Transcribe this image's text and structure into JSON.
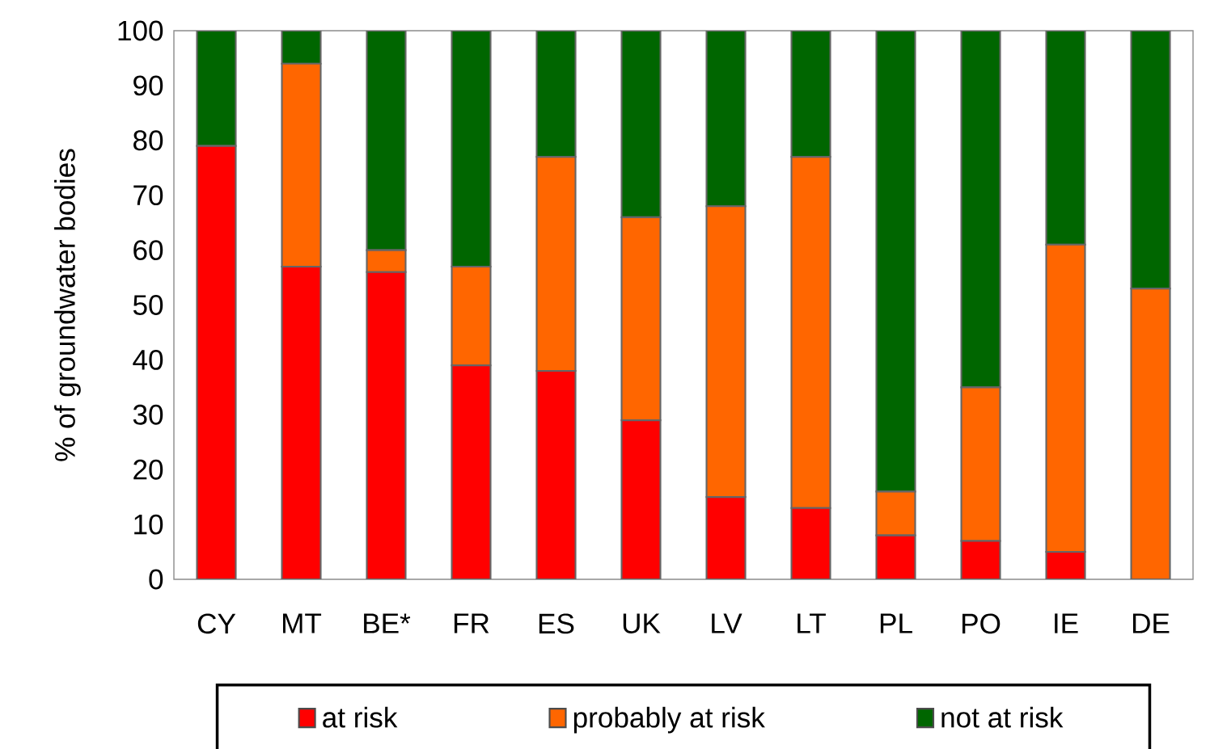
{
  "chart_data": {
    "type": "bar",
    "stacked": true,
    "ylabel": "% of  groundwater bodies",
    "categories": [
      "CY",
      "MT",
      "BE*",
      "FR",
      "ES",
      "UK",
      "LV",
      "LT",
      "PL",
      "PO",
      "IE",
      "DE"
    ],
    "series": [
      {
        "name": "at risk",
        "color": "#ff0000",
        "values": [
          79,
          57,
          56,
          39,
          38,
          29,
          15,
          13,
          8,
          7,
          5,
          0
        ]
      },
      {
        "name": "probably at risk",
        "color": "#ff6600",
        "values": [
          0,
          37,
          4,
          18,
          39,
          37,
          53,
          64,
          8,
          28,
          56,
          53
        ]
      },
      {
        "name": "not at risk",
        "color": "#006600",
        "values": [
          21,
          6,
          40,
          43,
          23,
          34,
          32,
          23,
          84,
          65,
          39,
          47
        ]
      }
    ],
    "ylim": [
      0,
      100
    ],
    "yticks": [
      0,
      10,
      20,
      30,
      40,
      50,
      60,
      70,
      80,
      90,
      100
    ],
    "legend": "bottom"
  }
}
